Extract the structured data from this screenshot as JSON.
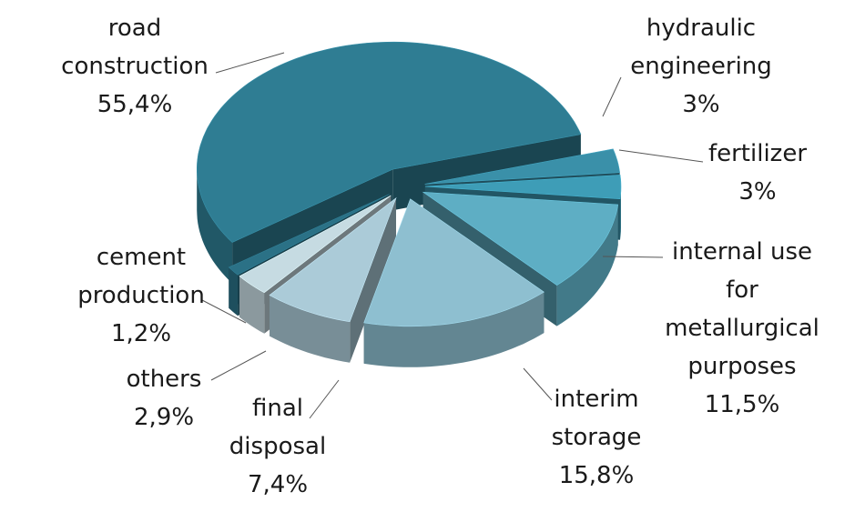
{
  "chart_data": {
    "type": "pie",
    "categories": [
      "road construction",
      "hydraulic engineering",
      "fertilizer",
      "internal use for metallurgical purposes",
      "interim storage",
      "final disposal",
      "others",
      "cement production"
    ],
    "values": [
      55.4,
      3,
      3,
      11.5,
      15.8,
      7.4,
      2.9,
      1.2
    ],
    "value_labels": [
      "55,4%",
      "3%",
      "3%",
      "11,5%",
      "15,8%",
      "7,4%",
      "2,9%",
      "1,2%"
    ],
    "colors": [
      "#2f7d93",
      "#3a90a9",
      "#3e9db7",
      "#5eaec4",
      "#8ebfd0",
      "#abcbd8",
      "#c6dbe2",
      "#2b7186"
    ]
  }
}
